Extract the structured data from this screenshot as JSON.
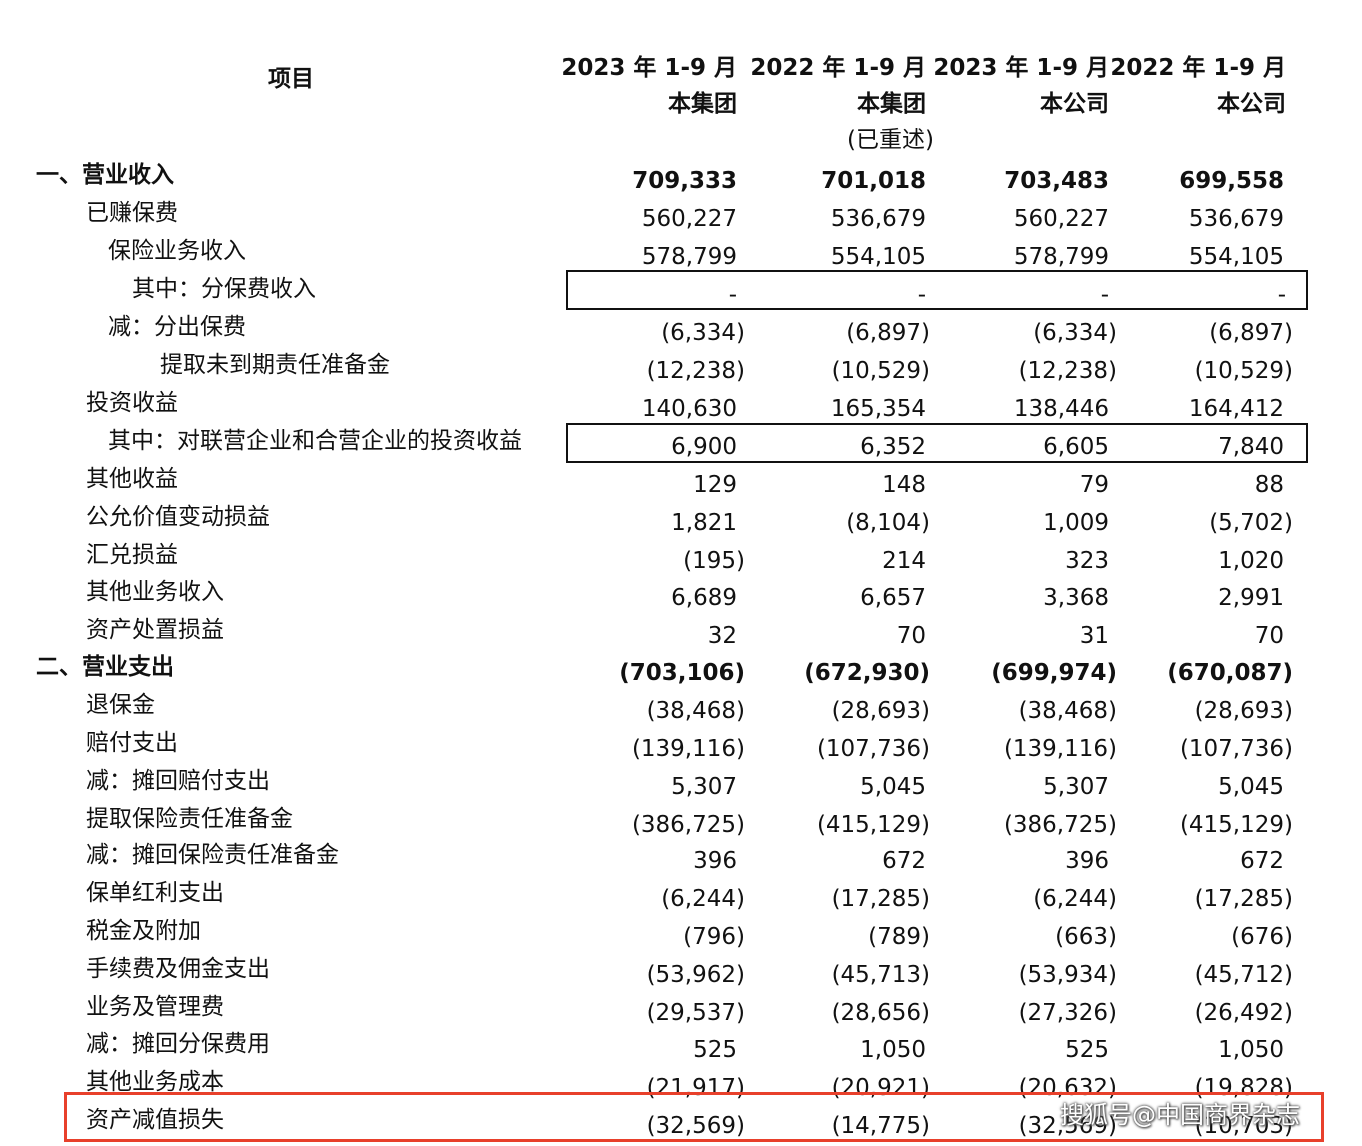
{
  "header": {
    "item": "项目",
    "columns": [
      {
        "line1": "2023 年 1-9 月",
        "line2": "本集团",
        "line3": ""
      },
      {
        "line1": "2022 年 1-9 月",
        "line2": "本集团",
        "line3": "(已重述)"
      },
      {
        "line1": "2023 年 1-9 月",
        "line2": "本公司",
        "line3": ""
      },
      {
        "line1": "2022 年 1-9 月",
        "line2": "本公司",
        "line3": ""
      }
    ]
  },
  "rows": [
    {
      "label": "一、营业收入",
      "values": [
        "709,333",
        "701,018",
        "703,483",
        "699,558"
      ]
    },
    {
      "label": "已赚保费",
      "values": [
        "560,227",
        "536,679",
        "560,227",
        "536,679"
      ]
    },
    {
      "label": "保险业务收入",
      "values": [
        "578,799",
        "554,105",
        "578,799",
        "554,105"
      ]
    },
    {
      "label": "其中：分保费收入",
      "values": [
        "-",
        "-",
        "-",
        "-"
      ]
    },
    {
      "label": "减：分出保费",
      "values": [
        "(6,334)",
        "(6,897)",
        "(6,334)",
        "(6,897)"
      ]
    },
    {
      "label": "提取未到期责任准备金",
      "values": [
        "(12,238)",
        "(10,529)",
        "(12,238)",
        "(10,529)"
      ]
    },
    {
      "label": "投资收益",
      "values": [
        "140,630",
        "165,354",
        "138,446",
        "164,412"
      ]
    },
    {
      "label": "其中：对联营企业和合营企业的投资收益",
      "values": [
        "6,900",
        "6,352",
        "6,605",
        "7,840"
      ]
    },
    {
      "label": "其他收益",
      "values": [
        "129",
        "148",
        "79",
        "88"
      ]
    },
    {
      "label": "公允价值变动损益",
      "values": [
        "1,821",
        "(8,104)",
        "1,009",
        "(5,702)"
      ]
    },
    {
      "label": "汇兑损益",
      "values": [
        "(195)",
        "214",
        "323",
        "1,020"
      ]
    },
    {
      "label": "其他业务收入",
      "values": [
        "6,689",
        "6,657",
        "3,368",
        "2,991"
      ]
    },
    {
      "label": "资产处置损益",
      "values": [
        "32",
        "70",
        "31",
        "70"
      ]
    },
    {
      "label": "二、营业支出",
      "values": [
        "(703,106)",
        "(672,930)",
        "(699,974)",
        "(670,087)"
      ]
    },
    {
      "label": "退保金",
      "values": [
        "(38,468)",
        "(28,693)",
        "(38,468)",
        "(28,693)"
      ]
    },
    {
      "label": "赔付支出",
      "values": [
        "(139,116)",
        "(107,736)",
        "(139,116)",
        "(107,736)"
      ]
    },
    {
      "label": "减：摊回赔付支出",
      "values": [
        "5,307",
        "5,045",
        "5,307",
        "5,045"
      ]
    },
    {
      "label": "提取保险责任准备金",
      "values": [
        "(386,725)",
        "(415,129)",
        "(386,725)",
        "(415,129)"
      ]
    },
    {
      "label": "减：摊回保险责任准备金",
      "values": [
        "396",
        "672",
        "396",
        "672"
      ]
    },
    {
      "label": "保单红利支出",
      "values": [
        "(6,244)",
        "(17,285)",
        "(6,244)",
        "(17,285)"
      ]
    },
    {
      "label": "税金及附加",
      "values": [
        "(796)",
        "(789)",
        "(663)",
        "(676)"
      ]
    },
    {
      "label": "手续费及佣金支出",
      "values": [
        "(53,962)",
        "(45,713)",
        "(53,934)",
        "(45,712)"
      ]
    },
    {
      "label": "业务及管理费",
      "values": [
        "(29,537)",
        "(28,656)",
        "(27,326)",
        "(26,492)"
      ]
    },
    {
      "label": "减：摊回分保费用",
      "values": [
        "525",
        "1,050",
        "525",
        "1,050"
      ]
    },
    {
      "label": "其他业务成本",
      "values": [
        "(21,917)",
        "(20,921)",
        "(20,632)",
        "(19,828)"
      ]
    },
    {
      "label": "资产减值损失",
      "values": [
        "(32,569)",
        "(14,775)",
        "(32,569)",
        "(10,703)"
      ]
    }
  ],
  "watermark": "搜狐号@中国商界杂志",
  "colors": {
    "text": "#111111",
    "highlight": "#e8402b",
    "background": "#ffffff"
  }
}
